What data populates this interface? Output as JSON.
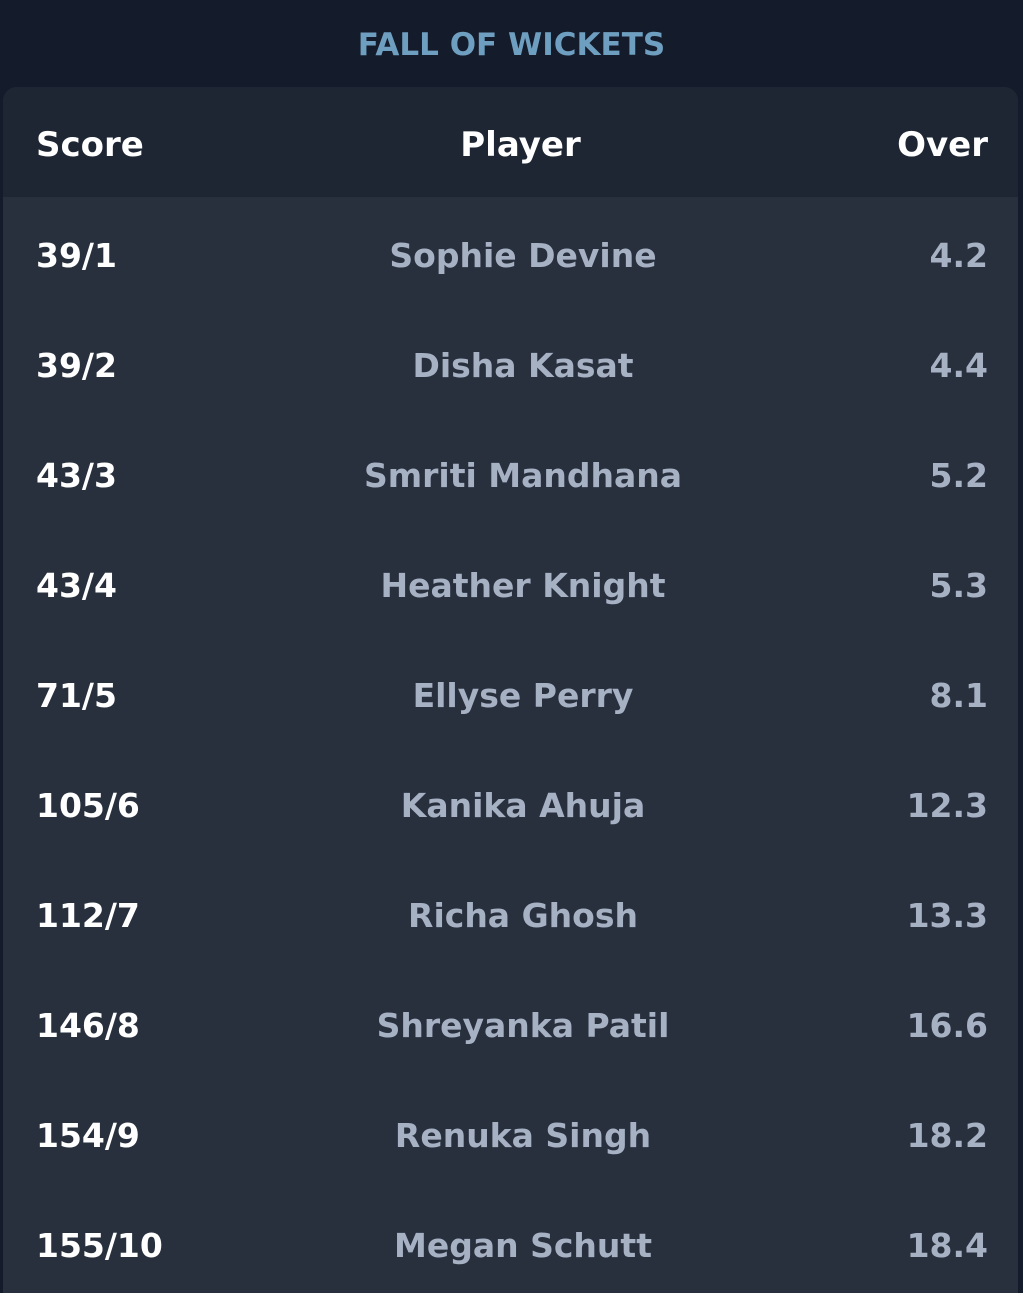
{
  "title": "FALL OF WICKETS",
  "columns": {
    "score": "Score",
    "player": "Player",
    "over": "Over"
  },
  "rows": [
    {
      "score": "39/1",
      "player": "Sophie Devine",
      "over": "4.2"
    },
    {
      "score": "39/2",
      "player": "Disha Kasat",
      "over": "4.4"
    },
    {
      "score": "43/3",
      "player": "Smriti Mandhana",
      "over": "5.2"
    },
    {
      "score": "43/4",
      "player": "Heather Knight",
      "over": "5.3"
    },
    {
      "score": "71/5",
      "player": "Ellyse Perry",
      "over": "8.1"
    },
    {
      "score": "105/6",
      "player": "Kanika Ahuja",
      "over": "12.3"
    },
    {
      "score": "112/7",
      "player": "Richa Ghosh",
      "over": "13.3"
    },
    {
      "score": "146/8",
      "player": "Shreyanka Patil",
      "over": "16.6"
    },
    {
      "score": "154/9",
      "player": "Renuka Singh",
      "over": "18.2"
    },
    {
      "score": "155/10",
      "player": "Megan Schutt",
      "over": "18.4"
    }
  ],
  "colors": {
    "background": "#141b2a",
    "card": "#28303e",
    "header": "#1e2634",
    "title": "#6f9fc0",
    "text_primary": "#ffffff",
    "text_secondary": "#a7b1c4"
  }
}
